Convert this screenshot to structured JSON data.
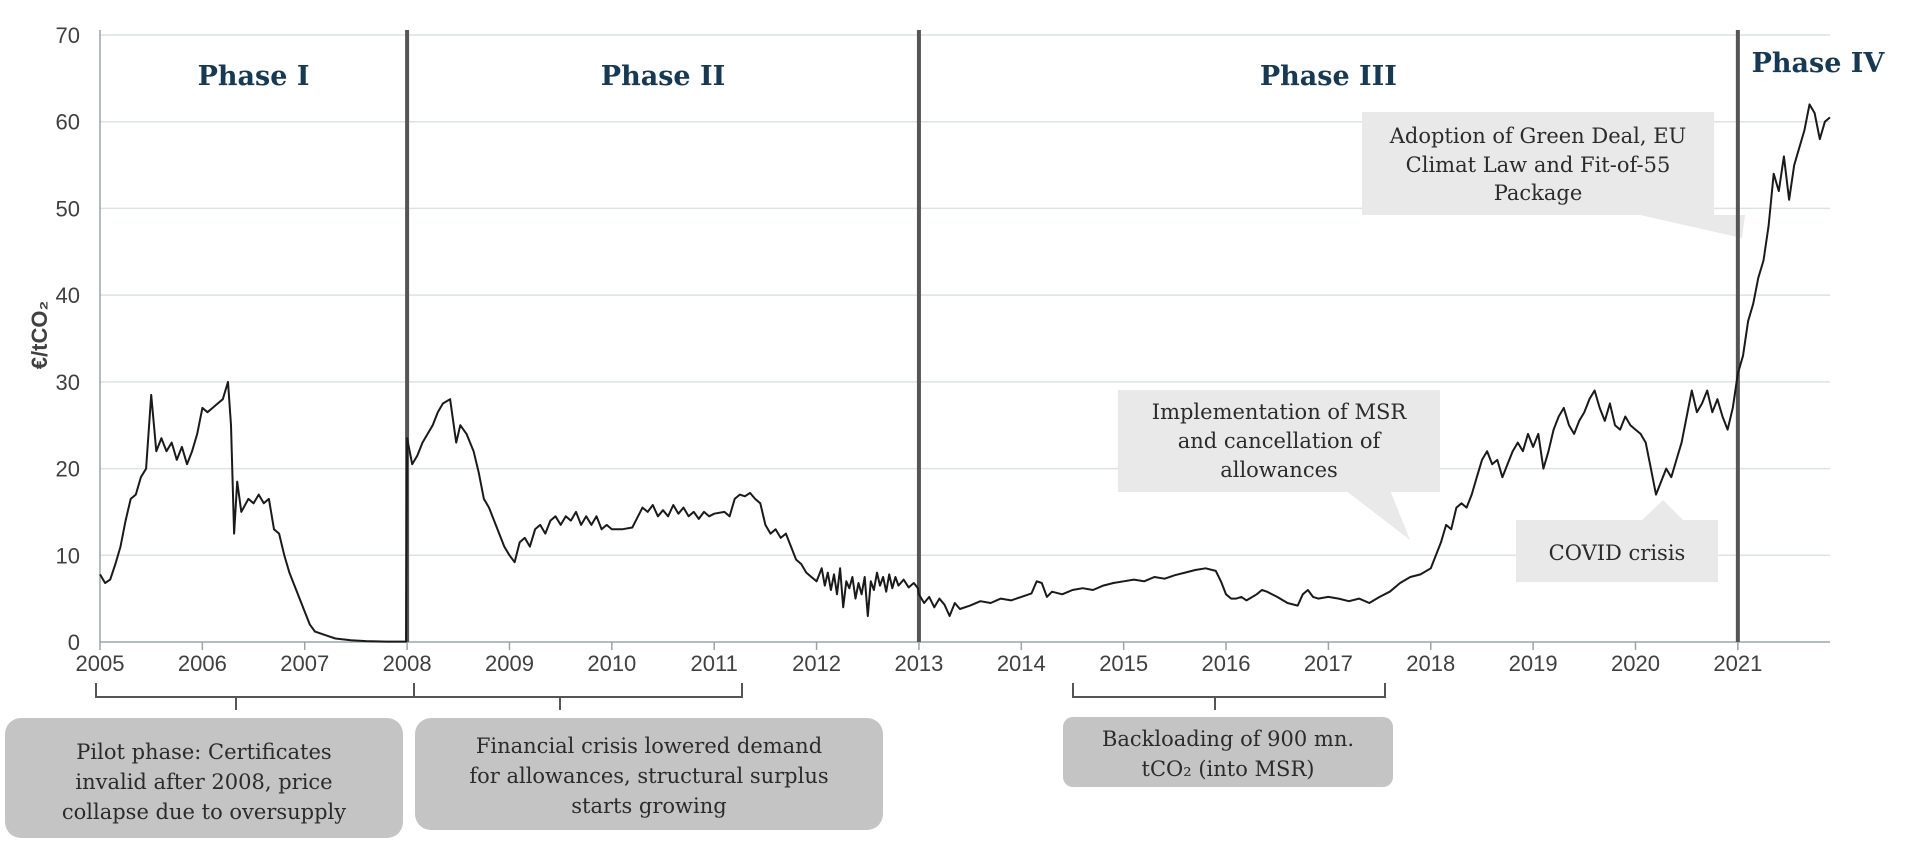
{
  "chart_data": {
    "type": "line",
    "ylabel": "€/tCO₂",
    "ylim": [
      0,
      70
    ],
    "xlim": [
      2005.0,
      2021.9
    ],
    "grid": true,
    "x_ticks": [
      "2005",
      "2006",
      "2007",
      "2008",
      "2009",
      "2010",
      "2011",
      "2012",
      "2013",
      "2014",
      "2015",
      "2016",
      "2017",
      "2018",
      "2019",
      "2020",
      "2021"
    ],
    "y_ticks": [
      "0",
      "10",
      "20",
      "30",
      "40",
      "50",
      "60",
      "70"
    ],
    "phases": [
      {
        "label": "Phase I",
        "start": 2005.0,
        "end": 2008.0
      },
      {
        "label": "Phase II",
        "start": 2008.0,
        "end": 2013.0
      },
      {
        "label": "Phase III",
        "start": 2013.0,
        "end": 2021.0
      },
      {
        "label": "Phase IV",
        "start": 2021.0,
        "end": 2021.9
      }
    ],
    "series": [
      {
        "points": [
          [
            2005.0,
            7.8
          ],
          [
            2005.05,
            6.8
          ],
          [
            2005.1,
            7.2
          ],
          [
            2005.15,
            9
          ],
          [
            2005.2,
            11
          ],
          [
            2005.25,
            14
          ],
          [
            2005.3,
            16.5
          ],
          [
            2005.35,
            17
          ],
          [
            2005.4,
            19
          ],
          [
            2005.45,
            20
          ],
          [
            2005.5,
            28.5
          ],
          [
            2005.55,
            22
          ],
          [
            2005.6,
            23.5
          ],
          [
            2005.65,
            22
          ],
          [
            2005.7,
            23
          ],
          [
            2005.75,
            21
          ],
          [
            2005.8,
            22.5
          ],
          [
            2005.85,
            20.5
          ],
          [
            2005.9,
            22
          ],
          [
            2005.95,
            24
          ],
          [
            2006.0,
            27
          ],
          [
            2006.05,
            26.5
          ],
          [
            2006.1,
            27
          ],
          [
            2006.15,
            27.5
          ],
          [
            2006.2,
            28
          ],
          [
            2006.25,
            30
          ],
          [
            2006.28,
            25
          ],
          [
            2006.31,
            12.5
          ],
          [
            2006.34,
            18.5
          ],
          [
            2006.38,
            15
          ],
          [
            2006.45,
            16.5
          ],
          [
            2006.5,
            16
          ],
          [
            2006.55,
            17
          ],
          [
            2006.6,
            16
          ],
          [
            2006.65,
            16.5
          ],
          [
            2006.7,
            13
          ],
          [
            2006.75,
            12.5
          ],
          [
            2006.8,
            10
          ],
          [
            2006.85,
            8
          ],
          [
            2006.9,
            6.5
          ],
          [
            2006.95,
            5
          ],
          [
            2007.0,
            3.5
          ],
          [
            2007.05,
            2
          ],
          [
            2007.1,
            1.2
          ],
          [
            2007.2,
            0.8
          ],
          [
            2007.3,
            0.4
          ],
          [
            2007.45,
            0.2
          ],
          [
            2007.6,
            0.1
          ],
          [
            2007.8,
            0.05
          ],
          [
            2007.99,
            0.05
          ],
          [
            2008.0,
            23.5
          ],
          [
            2008.05,
            20.5
          ],
          [
            2008.1,
            21.5
          ],
          [
            2008.15,
            23
          ],
          [
            2008.2,
            24
          ],
          [
            2008.25,
            25
          ],
          [
            2008.3,
            26.5
          ],
          [
            2008.35,
            27.5
          ],
          [
            2008.42,
            28
          ],
          [
            2008.48,
            23
          ],
          [
            2008.52,
            25
          ],
          [
            2008.58,
            24
          ],
          [
            2008.65,
            22
          ],
          [
            2008.7,
            19.5
          ],
          [
            2008.75,
            16.5
          ],
          [
            2008.8,
            15.5
          ],
          [
            2008.85,
            14
          ],
          [
            2008.9,
            12.5
          ],
          [
            2008.95,
            11
          ],
          [
            2009.0,
            10
          ],
          [
            2009.05,
            9.2
          ],
          [
            2009.1,
            11.5
          ],
          [
            2009.15,
            12
          ],
          [
            2009.2,
            11
          ],
          [
            2009.25,
            13
          ],
          [
            2009.3,
            13.5
          ],
          [
            2009.35,
            12.5
          ],
          [
            2009.4,
            14
          ],
          [
            2009.45,
            14.5
          ],
          [
            2009.5,
            13.5
          ],
          [
            2009.55,
            14.5
          ],
          [
            2009.6,
            14
          ],
          [
            2009.65,
            15
          ],
          [
            2009.7,
            13.5
          ],
          [
            2009.75,
            14.5
          ],
          [
            2009.8,
            13.5
          ],
          [
            2009.85,
            14.5
          ],
          [
            2009.9,
            13
          ],
          [
            2009.95,
            13.5
          ],
          [
            2010.0,
            13
          ],
          [
            2010.1,
            13
          ],
          [
            2010.2,
            13.2
          ],
          [
            2010.3,
            15.5
          ],
          [
            2010.35,
            15
          ],
          [
            2010.4,
            15.8
          ],
          [
            2010.45,
            14.5
          ],
          [
            2010.5,
            15.2
          ],
          [
            2010.55,
            14.5
          ],
          [
            2010.6,
            15.8
          ],
          [
            2010.65,
            14.8
          ],
          [
            2010.7,
            15.5
          ],
          [
            2010.75,
            14.5
          ],
          [
            2010.8,
            15
          ],
          [
            2010.85,
            14.2
          ],
          [
            2010.9,
            15
          ],
          [
            2010.95,
            14.5
          ],
          [
            2011.0,
            14.8
          ],
          [
            2011.1,
            15
          ],
          [
            2011.15,
            14.5
          ],
          [
            2011.2,
            16.5
          ],
          [
            2011.25,
            17
          ],
          [
            2011.3,
            16.8
          ],
          [
            2011.35,
            17.2
          ],
          [
            2011.4,
            16.5
          ],
          [
            2011.45,
            16
          ],
          [
            2011.5,
            13.5
          ],
          [
            2011.55,
            12.5
          ],
          [
            2011.6,
            13
          ],
          [
            2011.65,
            12
          ],
          [
            2011.7,
            12.5
          ],
          [
            2011.75,
            11
          ],
          [
            2011.8,
            9.5
          ],
          [
            2011.85,
            9
          ],
          [
            2011.9,
            8
          ],
          [
            2011.95,
            7.5
          ],
          [
            2012.0,
            7
          ],
          [
            2012.05,
            8.5
          ],
          [
            2012.08,
            6.5
          ],
          [
            2012.11,
            8
          ],
          [
            2012.14,
            6
          ],
          [
            2012.17,
            7.8
          ],
          [
            2012.2,
            5.5
          ],
          [
            2012.23,
            8.5
          ],
          [
            2012.26,
            4
          ],
          [
            2012.29,
            7
          ],
          [
            2012.32,
            6.2
          ],
          [
            2012.35,
            7.5
          ],
          [
            2012.38,
            5
          ],
          [
            2012.41,
            6.8
          ],
          [
            2012.44,
            5.5
          ],
          [
            2012.47,
            7.5
          ],
          [
            2012.5,
            3
          ],
          [
            2012.53,
            7
          ],
          [
            2012.56,
            6
          ],
          [
            2012.59,
            8
          ],
          [
            2012.62,
            6.5
          ],
          [
            2012.65,
            7.5
          ],
          [
            2012.68,
            5.8
          ],
          [
            2012.71,
            7.8
          ],
          [
            2012.74,
            6.2
          ],
          [
            2012.77,
            7.5
          ],
          [
            2012.8,
            6.5
          ],
          [
            2012.85,
            7.2
          ],
          [
            2012.9,
            6.3
          ],
          [
            2012.95,
            6.8
          ],
          [
            2012.99,
            6.2
          ],
          [
            2013.0,
            5.5
          ],
          [
            2013.05,
            4.5
          ],
          [
            2013.1,
            5.2
          ],
          [
            2013.15,
            4
          ],
          [
            2013.2,
            5
          ],
          [
            2013.25,
            4.3
          ],
          [
            2013.3,
            3
          ],
          [
            2013.35,
            4.5
          ],
          [
            2013.4,
            3.8
          ],
          [
            2013.5,
            4.2
          ],
          [
            2013.6,
            4.7
          ],
          [
            2013.7,
            4.5
          ],
          [
            2013.8,
            5
          ],
          [
            2013.9,
            4.8
          ],
          [
            2014.0,
            5.2
          ],
          [
            2014.1,
            5.6
          ],
          [
            2014.15,
            7
          ],
          [
            2014.2,
            6.8
          ],
          [
            2014.25,
            5.2
          ],
          [
            2014.3,
            5.8
          ],
          [
            2014.4,
            5.5
          ],
          [
            2014.5,
            6
          ],
          [
            2014.6,
            6.2
          ],
          [
            2014.7,
            6
          ],
          [
            2014.8,
            6.5
          ],
          [
            2014.9,
            6.8
          ],
          [
            2015.0,
            7
          ],
          [
            2015.1,
            7.2
          ],
          [
            2015.2,
            7
          ],
          [
            2015.3,
            7.5
          ],
          [
            2015.4,
            7.3
          ],
          [
            2015.5,
            7.7
          ],
          [
            2015.6,
            8
          ],
          [
            2015.7,
            8.3
          ],
          [
            2015.8,
            8.5
          ],
          [
            2015.9,
            8.2
          ],
          [
            2015.95,
            7
          ],
          [
            2016.0,
            5.5
          ],
          [
            2016.05,
            5
          ],
          [
            2016.1,
            5
          ],
          [
            2016.15,
            5.2
          ],
          [
            2016.2,
            4.8
          ],
          [
            2016.3,
            5.5
          ],
          [
            2016.35,
            6
          ],
          [
            2016.4,
            5.8
          ],
          [
            2016.5,
            5.2
          ],
          [
            2016.6,
            4.5
          ],
          [
            2016.7,
            4.2
          ],
          [
            2016.75,
            5.5
          ],
          [
            2016.8,
            6
          ],
          [
            2016.85,
            5.2
          ],
          [
            2016.9,
            5
          ],
          [
            2017.0,
            5.2
          ],
          [
            2017.1,
            5
          ],
          [
            2017.2,
            4.7
          ],
          [
            2017.3,
            5
          ],
          [
            2017.4,
            4.5
          ],
          [
            2017.5,
            5.2
          ],
          [
            2017.6,
            5.8
          ],
          [
            2017.7,
            6.8
          ],
          [
            2017.8,
            7.5
          ],
          [
            2017.9,
            7.8
          ],
          [
            2018.0,
            8.5
          ],
          [
            2018.05,
            10
          ],
          [
            2018.1,
            11.5
          ],
          [
            2018.15,
            13.5
          ],
          [
            2018.2,
            13
          ],
          [
            2018.25,
            15.5
          ],
          [
            2018.3,
            16
          ],
          [
            2018.35,
            15.5
          ],
          [
            2018.4,
            17
          ],
          [
            2018.45,
            19
          ],
          [
            2018.5,
            21
          ],
          [
            2018.55,
            22
          ],
          [
            2018.6,
            20.5
          ],
          [
            2018.65,
            21
          ],
          [
            2018.7,
            19
          ],
          [
            2018.75,
            20.5
          ],
          [
            2018.8,
            22
          ],
          [
            2018.85,
            23
          ],
          [
            2018.9,
            22
          ],
          [
            2018.95,
            24
          ],
          [
            2019.0,
            22.5
          ],
          [
            2019.05,
            24
          ],
          [
            2019.1,
            20
          ],
          [
            2019.15,
            22
          ],
          [
            2019.2,
            24.5
          ],
          [
            2019.25,
            26
          ],
          [
            2019.3,
            27
          ],
          [
            2019.35,
            25
          ],
          [
            2019.4,
            24
          ],
          [
            2019.45,
            25.5
          ],
          [
            2019.5,
            26.5
          ],
          [
            2019.55,
            28
          ],
          [
            2019.6,
            29
          ],
          [
            2019.65,
            27
          ],
          [
            2019.7,
            25.5
          ],
          [
            2019.75,
            27.5
          ],
          [
            2019.8,
            25
          ],
          [
            2019.85,
            24.5
          ],
          [
            2019.9,
            26
          ],
          [
            2019.95,
            25
          ],
          [
            2020.0,
            24.5
          ],
          [
            2020.05,
            24
          ],
          [
            2020.1,
            23
          ],
          [
            2020.15,
            20
          ],
          [
            2020.2,
            17
          ],
          [
            2020.25,
            18.5
          ],
          [
            2020.3,
            20
          ],
          [
            2020.35,
            19
          ],
          [
            2020.4,
            21
          ],
          [
            2020.45,
            23
          ],
          [
            2020.5,
            26
          ],
          [
            2020.55,
            29
          ],
          [
            2020.6,
            26.5
          ],
          [
            2020.65,
            27.5
          ],
          [
            2020.7,
            29
          ],
          [
            2020.75,
            26.5
          ],
          [
            2020.8,
            28
          ],
          [
            2020.85,
            26
          ],
          [
            2020.9,
            24.5
          ],
          [
            2020.95,
            27
          ],
          [
            2021.0,
            31
          ],
          [
            2021.05,
            33
          ],
          [
            2021.1,
            37
          ],
          [
            2021.15,
            39
          ],
          [
            2021.2,
            42
          ],
          [
            2021.25,
            44
          ],
          [
            2021.3,
            48
          ],
          [
            2021.35,
            54
          ],
          [
            2021.4,
            52
          ],
          [
            2021.45,
            56
          ],
          [
            2021.5,
            51
          ],
          [
            2021.55,
            55
          ],
          [
            2021.6,
            57
          ],
          [
            2021.65,
            59
          ],
          [
            2021.7,
            62
          ],
          [
            2021.75,
            61
          ],
          [
            2021.8,
            58
          ],
          [
            2021.85,
            60
          ],
          [
            2021.9,
            60.5
          ]
        ]
      }
    ]
  },
  "annotations": {
    "green_deal": [
      "Adoption of Green Deal, EU",
      "Climat Law and Fit-of-55",
      "Package"
    ],
    "msr": [
      "Implementation of MSR",
      "and cancellation of",
      "allowances"
    ],
    "covid": [
      "COVID crisis"
    ],
    "pilot": [
      "Pilot phase: Certificates",
      "invalid after 2008, price",
      "collapse due to oversupply"
    ],
    "financial": [
      "Financial crisis lowered demand",
      "for allowances, structural surplus",
      "starts growing"
    ],
    "backloading": [
      "Backloading of 900 mn.",
      "tCO₂ (into MSR)"
    ]
  },
  "colors": {
    "line": "#1a1a1a",
    "phase_title": "#163a55",
    "callout": "#e9e9e9",
    "pill": "#c4c4c4"
  }
}
